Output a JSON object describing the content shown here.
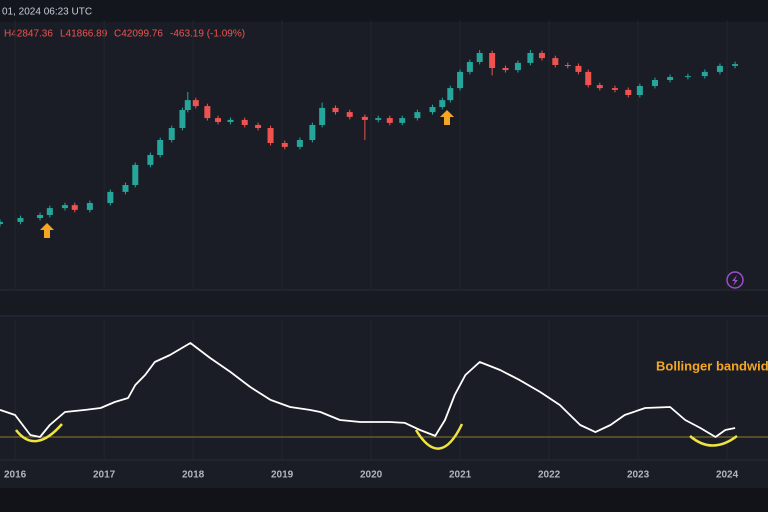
{
  "header": {
    "datetime": "01, 2024 06:23 UTC",
    "high": "H42847.36",
    "low": "L41866.89",
    "close": "C42099.76",
    "change": "-463.19 (-1.09%)"
  },
  "chart_data": [
    {
      "type": "candlestick",
      "up_color": "#26a69a",
      "down_color": "#ef5350",
      "xlim": [
        2015.83,
        2024.46
      ],
      "ylim": [
        0,
        90
      ],
      "grid": true,
      "x": [
        2015.83,
        2016.06,
        2016.28,
        2016.39,
        2016.56,
        2016.67,
        2016.84,
        2017.07,
        2017.24,
        2017.35,
        2017.52,
        2017.63,
        2017.76,
        2017.88,
        2017.94,
        2018.03,
        2018.16,
        2018.28,
        2018.42,
        2018.58,
        2018.73,
        2018.87,
        2019.03,
        2019.2,
        2019.34,
        2019.45,
        2019.6,
        2019.76,
        2019.93,
        2020.08,
        2020.21,
        2020.35,
        2020.52,
        2020.69,
        2020.8,
        2020.89,
        2021.0,
        2021.11,
        2021.22,
        2021.36,
        2021.51,
        2021.65,
        2021.79,
        2021.92,
        2022.07,
        2022.21,
        2022.33,
        2022.44,
        2022.57,
        2022.74,
        2022.89,
        2023.02,
        2023.19,
        2023.36,
        2023.56,
        2023.75,
        2023.92,
        2024.09
      ],
      "open": [
        22.0,
        22.7,
        24.0,
        25.0,
        27.3,
        28.3,
        26.7,
        29.0,
        32.7,
        35.0,
        41.7,
        45.0,
        50.0,
        54.0,
        60.0,
        63.3,
        61.3,
        57.3,
        56.0,
        56.7,
        55.0,
        54.0,
        49.0,
        47.7,
        50.0,
        55.0,
        60.7,
        59.3,
        57.7,
        56.7,
        57.3,
        55.7,
        57.3,
        59.3,
        61.0,
        63.3,
        67.3,
        72.7,
        76.0,
        79.0,
        74.0,
        73.3,
        75.7,
        79.0,
        77.3,
        75.0,
        74.7,
        72.7,
        68.3,
        67.3,
        66.7,
        65.0,
        68.0,
        70.0,
        71.0,
        71.3,
        72.7,
        74.7
      ],
      "high": [
        23.5,
        24.8,
        25.8,
        28.1,
        29.1,
        29.1,
        29.8,
        33.5,
        35.8,
        42.5,
        45.8,
        50.8,
        54.8,
        60.8,
        66.0,
        64.1,
        62.1,
        58.1,
        57.5,
        57.5,
        55.8,
        54.8,
        49.8,
        50.8,
        55.8,
        62.5,
        61.5,
        60.1,
        58.5,
        58.1,
        58.1,
        58.1,
        60.1,
        61.8,
        64.1,
        68.1,
        73.5,
        76.8,
        80.0,
        79.8,
        74.8,
        76.5,
        80.0,
        79.8,
        78.1,
        75.8,
        75.5,
        73.5,
        69.1,
        68.1,
        67.5,
        68.8,
        70.8,
        71.8,
        72.1,
        73.5,
        75.5,
        76.1
      ],
      "low": [
        21.2,
        21.9,
        23.2,
        24.2,
        26.5,
        25.9,
        25.9,
        28.2,
        31.9,
        34.2,
        40.9,
        44.2,
        49.2,
        53.2,
        59.2,
        60.5,
        56.5,
        55.2,
        55.2,
        54.2,
        53.2,
        48.2,
        46.9,
        46.9,
        49.2,
        54.2,
        58.5,
        56.9,
        50.0,
        55.9,
        54.9,
        54.9,
        56.5,
        58.5,
        60.2,
        62.5,
        66.5,
        71.9,
        75.2,
        71.5,
        72.5,
        72.5,
        74.9,
        76.5,
        74.2,
        73.9,
        71.9,
        67.5,
        66.5,
        65.9,
        64.2,
        64.2,
        67.2,
        69.2,
        70.2,
        70.5,
        71.9,
        73.9
      ],
      "close": [
        22.7,
        24.0,
        25.0,
        27.3,
        28.3,
        26.7,
        29.0,
        32.7,
        35.0,
        41.7,
        45.0,
        50.0,
        54.0,
        60.0,
        63.3,
        61.3,
        57.3,
        56.0,
        56.7,
        55.0,
        54.0,
        49.0,
        47.7,
        50.0,
        55.0,
        60.7,
        59.3,
        57.7,
        56.7,
        57.3,
        55.7,
        57.3,
        59.3,
        61.0,
        63.3,
        67.3,
        72.7,
        76.0,
        79.0,
        74.0,
        73.3,
        75.7,
        79.0,
        77.3,
        75.0,
        74.7,
        72.7,
        68.3,
        67.3,
        66.7,
        65.0,
        68.0,
        70.0,
        71.0,
        71.3,
        72.7,
        74.7,
        75.3
      ]
    },
    {
      "type": "line",
      "annotation": "Bollinger bandwidth",
      "color": "#ffffff",
      "threshold": 17.7,
      "threshold_color": "#8a7a2e",
      "xlim": [
        2015.83,
        2024.46
      ],
      "ylim": [
        0,
        100
      ],
      "grid": true,
      "xticks": [
        2016,
        2017,
        2018,
        2019,
        2020,
        2021,
        2022,
        2023,
        2024
      ],
      "x": [
        2015.83,
        2016.0,
        2016.17,
        2016.28,
        2016.39,
        2016.56,
        2016.79,
        2016.96,
        2017.12,
        2017.27,
        2017.35,
        2017.46,
        2017.57,
        2017.74,
        2017.97,
        2018.19,
        2018.42,
        2018.64,
        2018.87,
        2019.09,
        2019.31,
        2019.43,
        2019.65,
        2019.88,
        2020.21,
        2020.38,
        2020.55,
        2020.72,
        2020.83,
        2020.94,
        2021.06,
        2021.22,
        2021.45,
        2021.67,
        2021.9,
        2022.12,
        2022.35,
        2022.52,
        2022.69,
        2022.85,
        2023.08,
        2023.36,
        2023.53,
        2023.7,
        2023.87,
        2023.98,
        2024.09
      ],
      "values": [
        38.5,
        34.6,
        19.2,
        17.7,
        26.9,
        36.9,
        38.5,
        40.0,
        44.6,
        47.7,
        57.7,
        65.4,
        75.4,
        80.8,
        90.0,
        78.5,
        67.7,
        56.2,
        46.2,
        40.8,
        38.5,
        36.9,
        30.8,
        29.2,
        29.2,
        28.5,
        23.1,
        18.5,
        30.8,
        50.0,
        65.4,
        75.4,
        69.2,
        61.5,
        52.3,
        42.3,
        26.9,
        21.5,
        26.9,
        34.6,
        40.0,
        40.8,
        30.8,
        24.6,
        17.7,
        23.1,
        24.6
      ]
    }
  ]
}
